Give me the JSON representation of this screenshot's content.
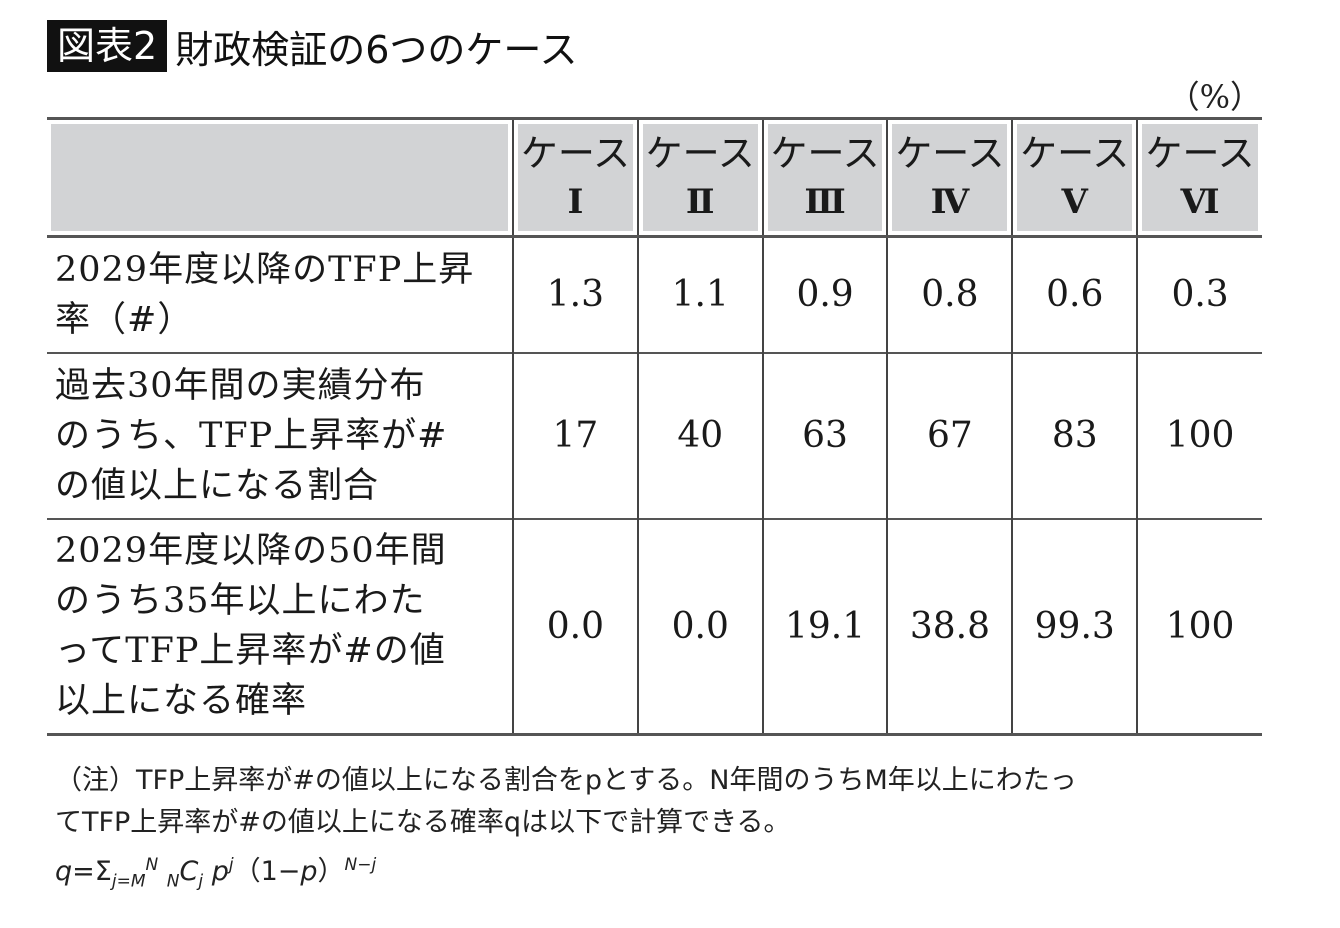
{
  "title": {
    "badge": "図表2",
    "text": "財政検証の6つのケース"
  },
  "unit": "（%）",
  "table": {
    "columns": [
      {
        "label": "ケース",
        "roman": "Ⅰ"
      },
      {
        "label": "ケース",
        "roman": "Ⅱ"
      },
      {
        "label": "ケース",
        "roman": "Ⅲ"
      },
      {
        "label": "ケース",
        "roman": "Ⅳ"
      },
      {
        "label": "ケース",
        "roman": "Ⅴ"
      },
      {
        "label": "ケース",
        "roman": "Ⅵ"
      }
    ],
    "rows": [
      {
        "label_lines": [
          "2029年度以降のTFP上昇",
          "率（#）"
        ],
        "values": [
          "1.3",
          "1.1",
          "0.9",
          "0.8",
          "0.6",
          "0.3"
        ]
      },
      {
        "label_lines": [
          "過去30年間の実績分布",
          "のうち、TFP上昇率が#",
          "の値以上になる割合"
        ],
        "values": [
          "17",
          "40",
          "63",
          "67",
          "83",
          "100"
        ]
      },
      {
        "label_lines": [
          "2029年度以降の50年間",
          "のうち35年以上にわた",
          "ってTFP上昇率が#の値",
          "以上になる確率"
        ],
        "values": [
          "0.0",
          "0.0",
          "19.1",
          "38.8",
          "99.3",
          "100"
        ]
      }
    ]
  },
  "notes": {
    "line1": "（注）TFP上昇率が#の値以上になる割合をpとする。N年間のうちM年以上にわたっ",
    "line2": "てTFP上昇率が#の値以上になる確率qは以下で計算できる。",
    "formula": "q=Σ_{j=M}^{N} _NC_j p^j（1−p）^{N−j}"
  }
}
